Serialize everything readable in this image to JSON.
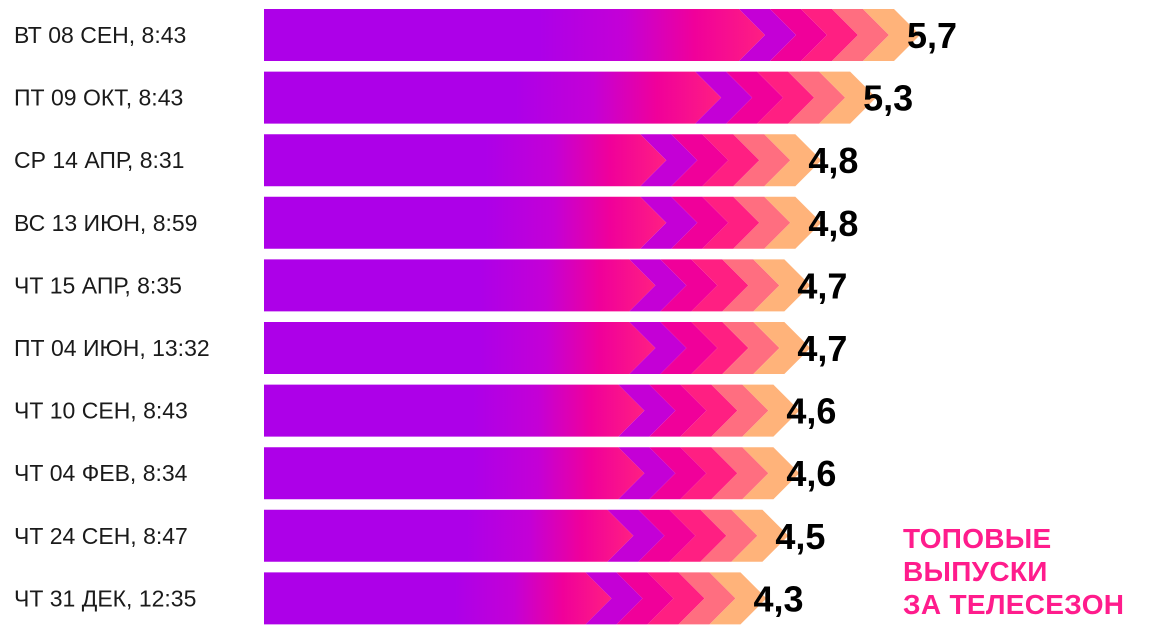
{
  "chart_data": {
    "type": "bar",
    "orientation": "horizontal",
    "categories": [
      "ВТ 08 СЕН, 8:43",
      "ПТ 09 ОКТ, 8:43",
      "СР 14 АПР, 8:31",
      "ВС 13 ИЮН, 8:59",
      "ЧТ 15 АПР, 8:35",
      "ПТ 04 ИЮН, 13:32",
      "ЧТ 10 СЕН, 8:43",
      "ЧТ 04 ФЕВ, 8:34",
      "ЧТ 24 СЕН, 8:47",
      "ЧТ 31 ДЕК, 12:35"
    ],
    "values": [
      5.7,
      5.3,
      4.8,
      4.8,
      4.7,
      4.7,
      4.6,
      4.6,
      4.5,
      4.3
    ],
    "value_labels": [
      "5,7",
      "5,3",
      "4,8",
      "4,8",
      "4,7",
      "4,7",
      "4,6",
      "4,6",
      "4,5",
      "4,3"
    ],
    "xlim": [
      0,
      5.7
    ],
    "grid": false,
    "legend": "none",
    "colors": {
      "gradient": [
        "#ad00e8",
        "#c400d6",
        "#f0009a",
        "#ff1f82",
        "#ff6e80",
        "#ffb37a"
      ],
      "caption": "#ff1c8c",
      "label": "#1a1a1a",
      "value": "#000000"
    }
  },
  "caption": {
    "lines": [
      "ТОПОВЫЕ",
      "ВЫПУСКИ",
      "ЗА ТЕЛЕСЕЗОН"
    ]
  }
}
